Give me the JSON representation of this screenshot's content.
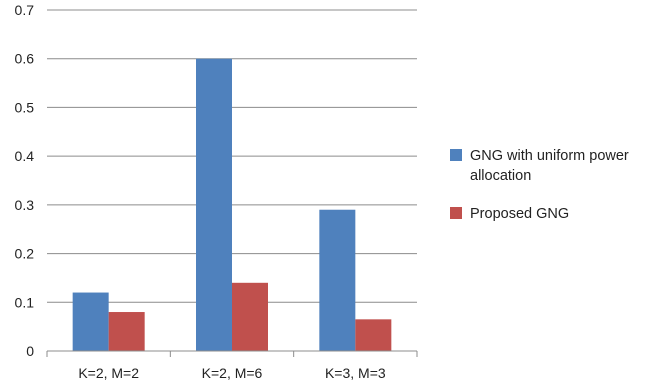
{
  "chart_data": {
    "type": "bar",
    "title": "",
    "xlabel": "",
    "ylabel": "",
    "categories": [
      "K=2, M=2",
      "K=2, M=6",
      "K=3, M=3"
    ],
    "series": [
      {
        "name": "GNG with uniform power allocation",
        "values": [
          0.12,
          0.6,
          0.29
        ],
        "color": "#4F81BD"
      },
      {
        "name": "Proposed GNG",
        "values": [
          0.08,
          0.14,
          0.065
        ],
        "color": "#C0504D"
      }
    ],
    "ylim": [
      0,
      0.7
    ],
    "yticks": [
      0,
      0.1,
      0.2,
      0.3,
      0.4,
      0.5,
      0.6,
      0.7
    ],
    "ytick_labels": [
      "0",
      "0.1",
      "0.2",
      "0.3",
      "0.4",
      "0.5",
      "0.6",
      "0.7"
    ],
    "grid": true,
    "legend_position": "right"
  }
}
